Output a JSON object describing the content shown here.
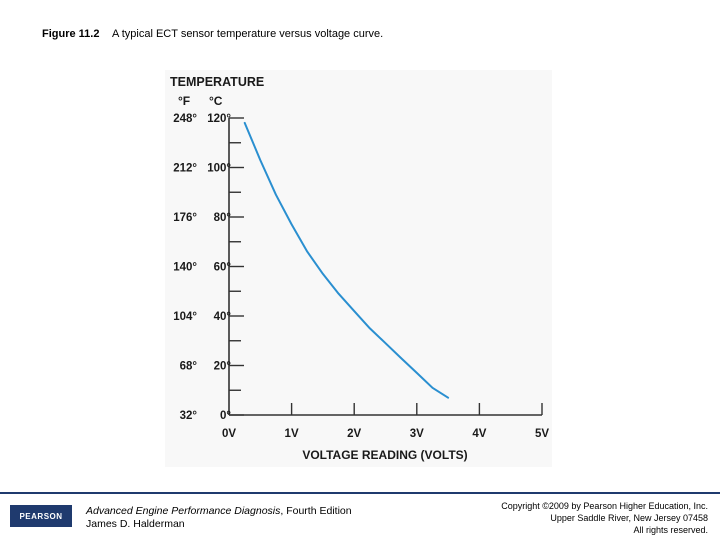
{
  "figure": {
    "number": "Figure 11.2",
    "caption": "A typical ECT sensor temperature versus voltage curve."
  },
  "chart_data": {
    "type": "line",
    "title": "TEMPERATURE",
    "y_unit_f": "°F",
    "y_unit_c": "°C",
    "xlabel": "VOLTAGE READING (VOLTS)",
    "x_ticks": [
      "0V",
      "1V",
      "2V",
      "3V",
      "4V",
      "5V"
    ],
    "xlim": [
      0,
      5
    ],
    "ylim": [
      0,
      120
    ],
    "y_ticks": [
      {
        "c": 120,
        "f": "248°",
        "c_label": "120°"
      },
      {
        "c": 100,
        "f": "212°",
        "c_label": "100°"
      },
      {
        "c": 80,
        "f": "176°",
        "c_label": "80°"
      },
      {
        "c": 60,
        "f": "140°",
        "c_label": "60°"
      },
      {
        "c": 40,
        "f": "104°",
        "c_label": "40°"
      },
      {
        "c": 20,
        "f": "68°",
        "c_label": "20°"
      },
      {
        "c": 0,
        "f": "32°",
        "c_label": "0°"
      }
    ],
    "series": [
      {
        "color": "#2a8fd0",
        "x": [
          0.25,
          0.5,
          0.75,
          1.0,
          1.25,
          1.5,
          1.75,
          2.0,
          2.25,
          2.5,
          2.75,
          3.0,
          3.25,
          3.5
        ],
        "y": [
          118,
          103,
          89,
          77,
          66,
          57,
          49,
          42,
          35,
          29,
          23,
          17,
          11,
          7
        ]
      }
    ],
    "grid": false
  },
  "footer": {
    "publisher_logo": "PEARSON",
    "book_title": "Advanced Engine Performance Diagnosis",
    "book_edition": ", Fourth Edition",
    "author": "James D. Halderman",
    "copyright_line1": "Copyright ©2009 by Pearson Higher Education, Inc.",
    "copyright_line2": "Upper Saddle River, New Jersey 07458",
    "copyright_line3": "All rights reserved."
  }
}
